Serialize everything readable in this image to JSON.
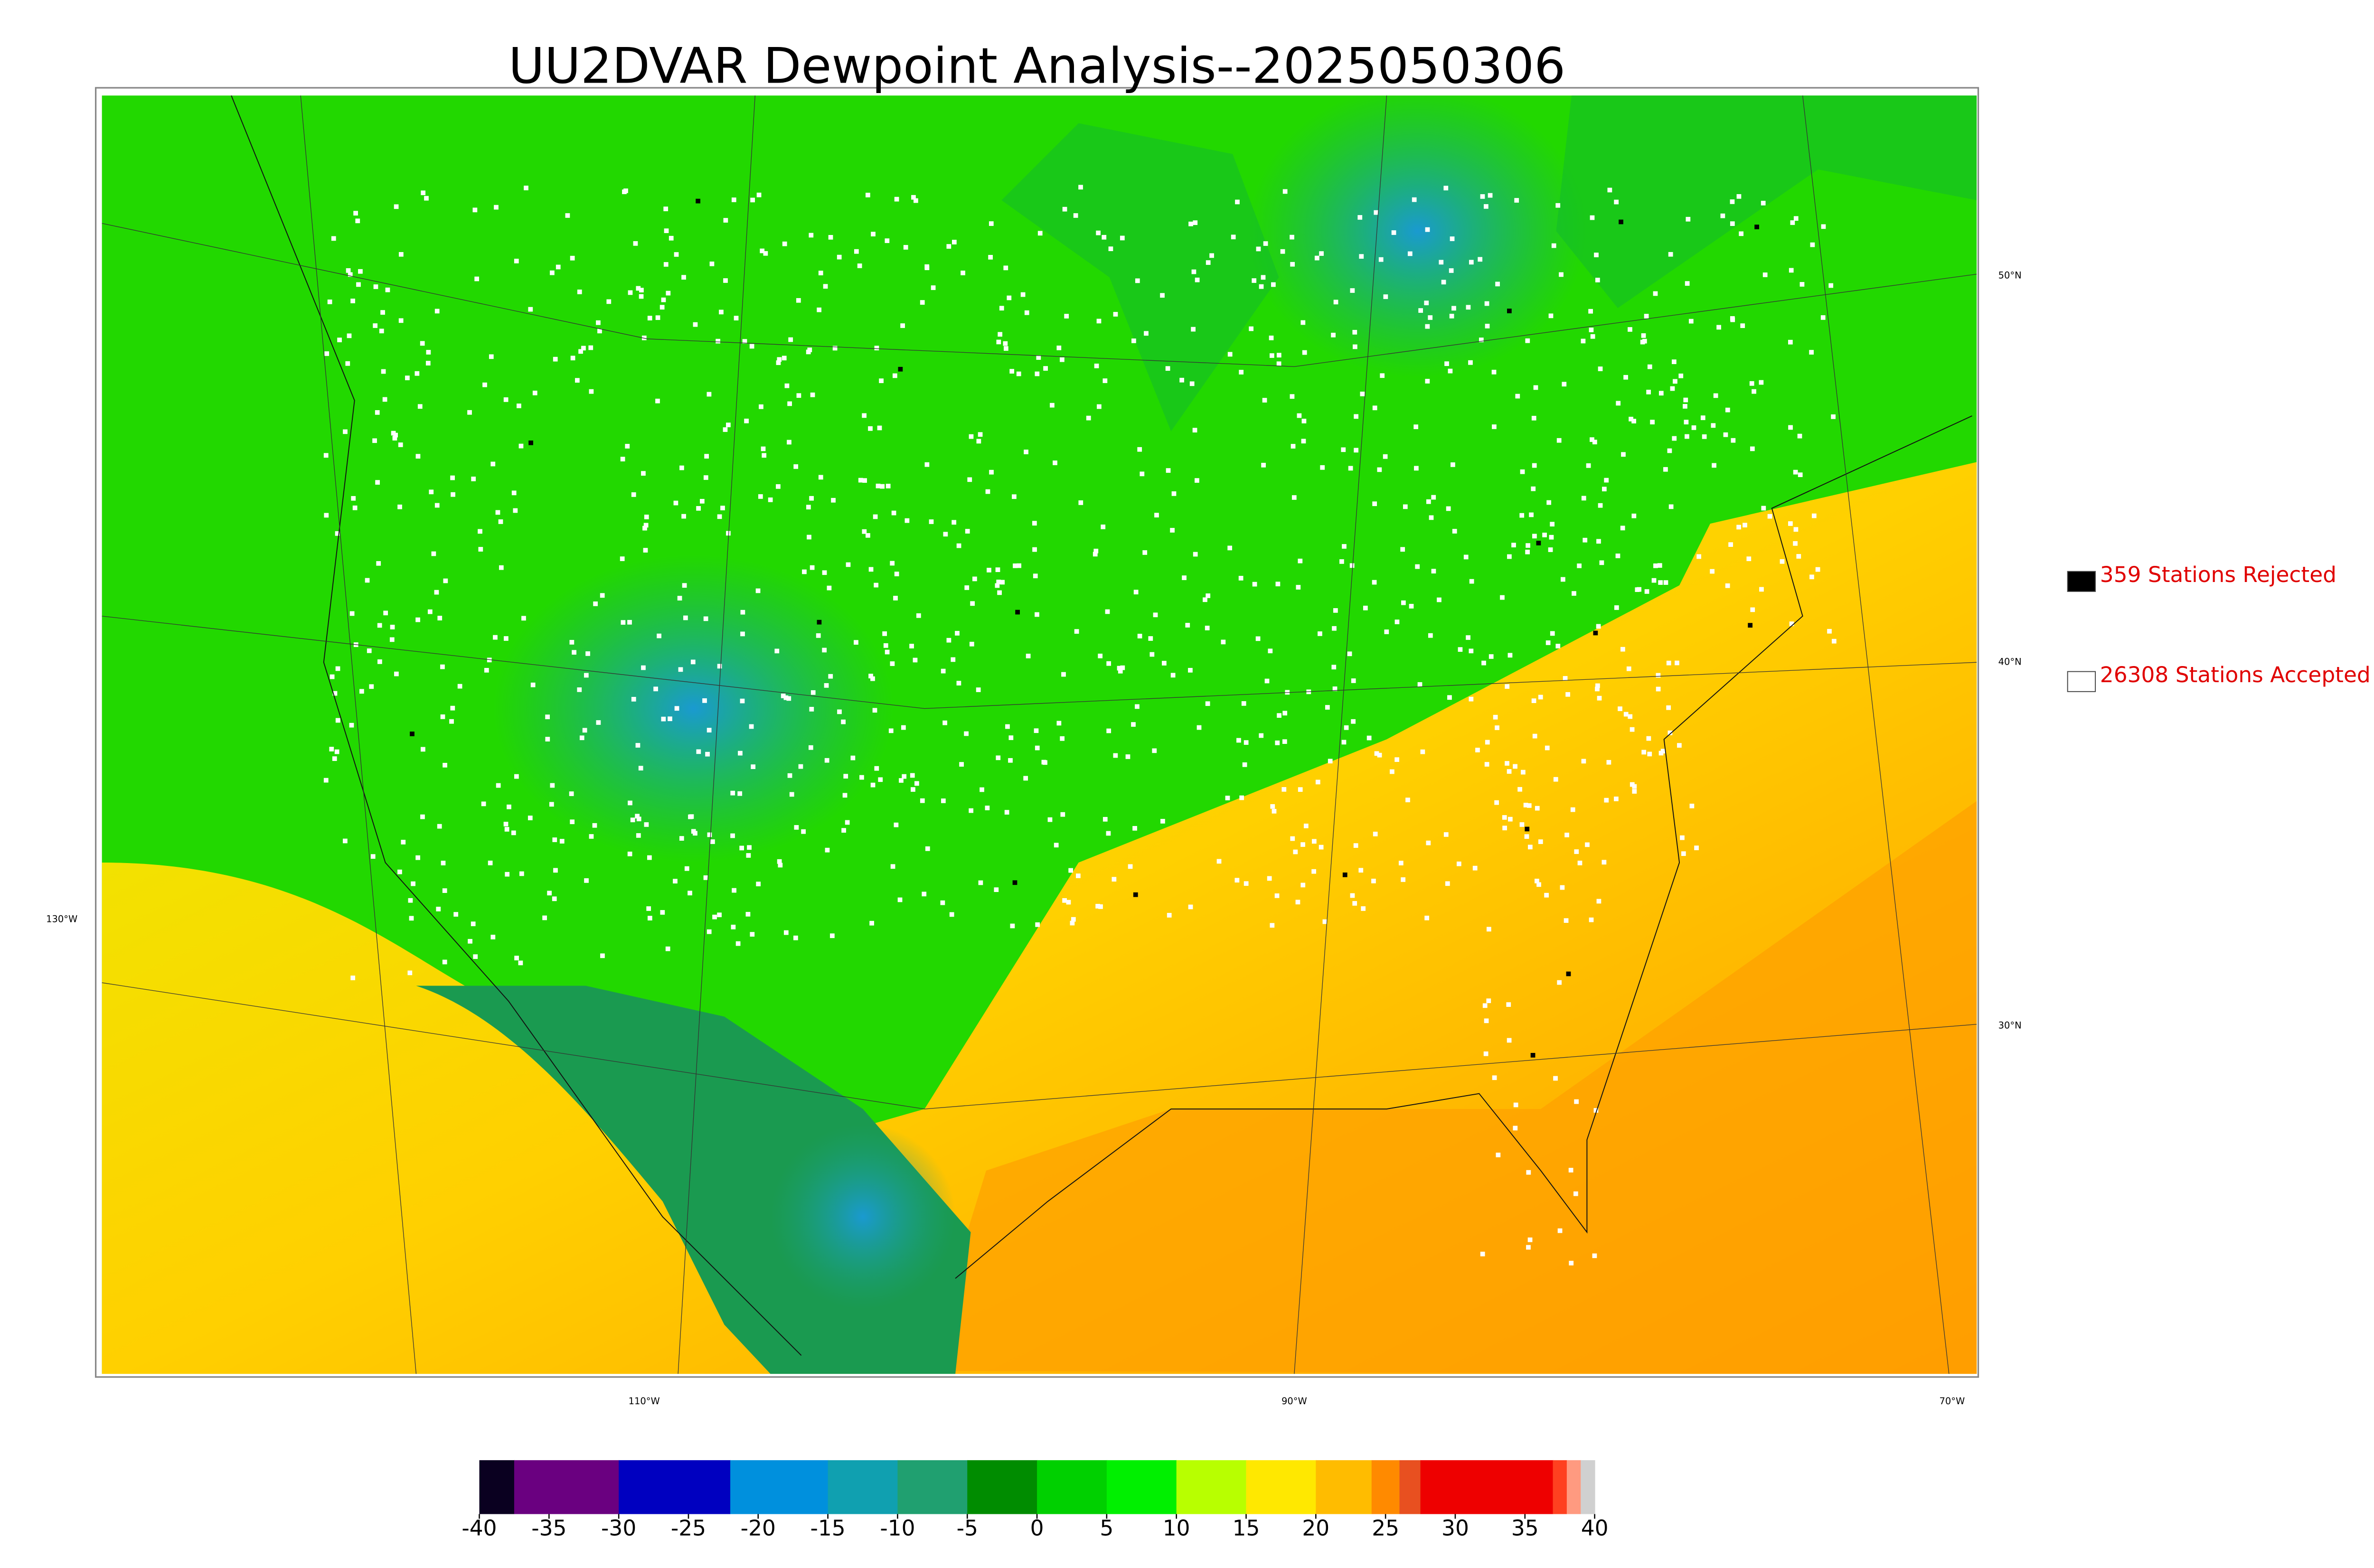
{
  "title": "UU2DVAR Dewpoint Analysis--2025050306",
  "map": {
    "lat_labels": [
      "50°N",
      "40°N",
      "30°N"
    ],
    "lon_labels": [
      "130°W",
      "110°W",
      "90°W",
      "70°W"
    ]
  },
  "legend": [
    {
      "label": "359 Stations Rejected",
      "color": "#000000"
    },
    {
      "label": "26308 Stations Accepted",
      "color": "#ffffff"
    }
  ],
  "colorbar": {
    "range": [
      -40,
      40
    ],
    "ticks": [
      -40,
      -35,
      -30,
      -25,
      -20,
      -15,
      -10,
      -5,
      0,
      5,
      10,
      15,
      20,
      25,
      30,
      35,
      40
    ],
    "segments": [
      {
        "value": -40,
        "color": "#0a0020"
      },
      {
        "value": -37.5,
        "color": "#6a0080"
      },
      {
        "value": -30,
        "color": "#0000c0"
      },
      {
        "value": -22,
        "color": "#0090dd"
      },
      {
        "value": -15,
        "color": "#10a0b0"
      },
      {
        "value": -10,
        "color": "#20a070"
      },
      {
        "value": -5,
        "color": "#008c00"
      },
      {
        "value": 0,
        "color": "#00d000"
      },
      {
        "value": 5,
        "color": "#00f000"
      },
      {
        "value": 10,
        "color": "#b8ff00"
      },
      {
        "value": 15,
        "color": "#ffe800"
      },
      {
        "value": 20,
        "color": "#ffbc00"
      },
      {
        "value": 24,
        "color": "#ff8a00"
      },
      {
        "value": 26,
        "color": "#e85020"
      },
      {
        "value": 27.5,
        "color": "#ee0000"
      },
      {
        "value": 37,
        "color": "#ff4020"
      },
      {
        "value": 38,
        "color": "#ff9a80"
      },
      {
        "value": 39,
        "color": "#d0d0d0"
      }
    ]
  }
}
